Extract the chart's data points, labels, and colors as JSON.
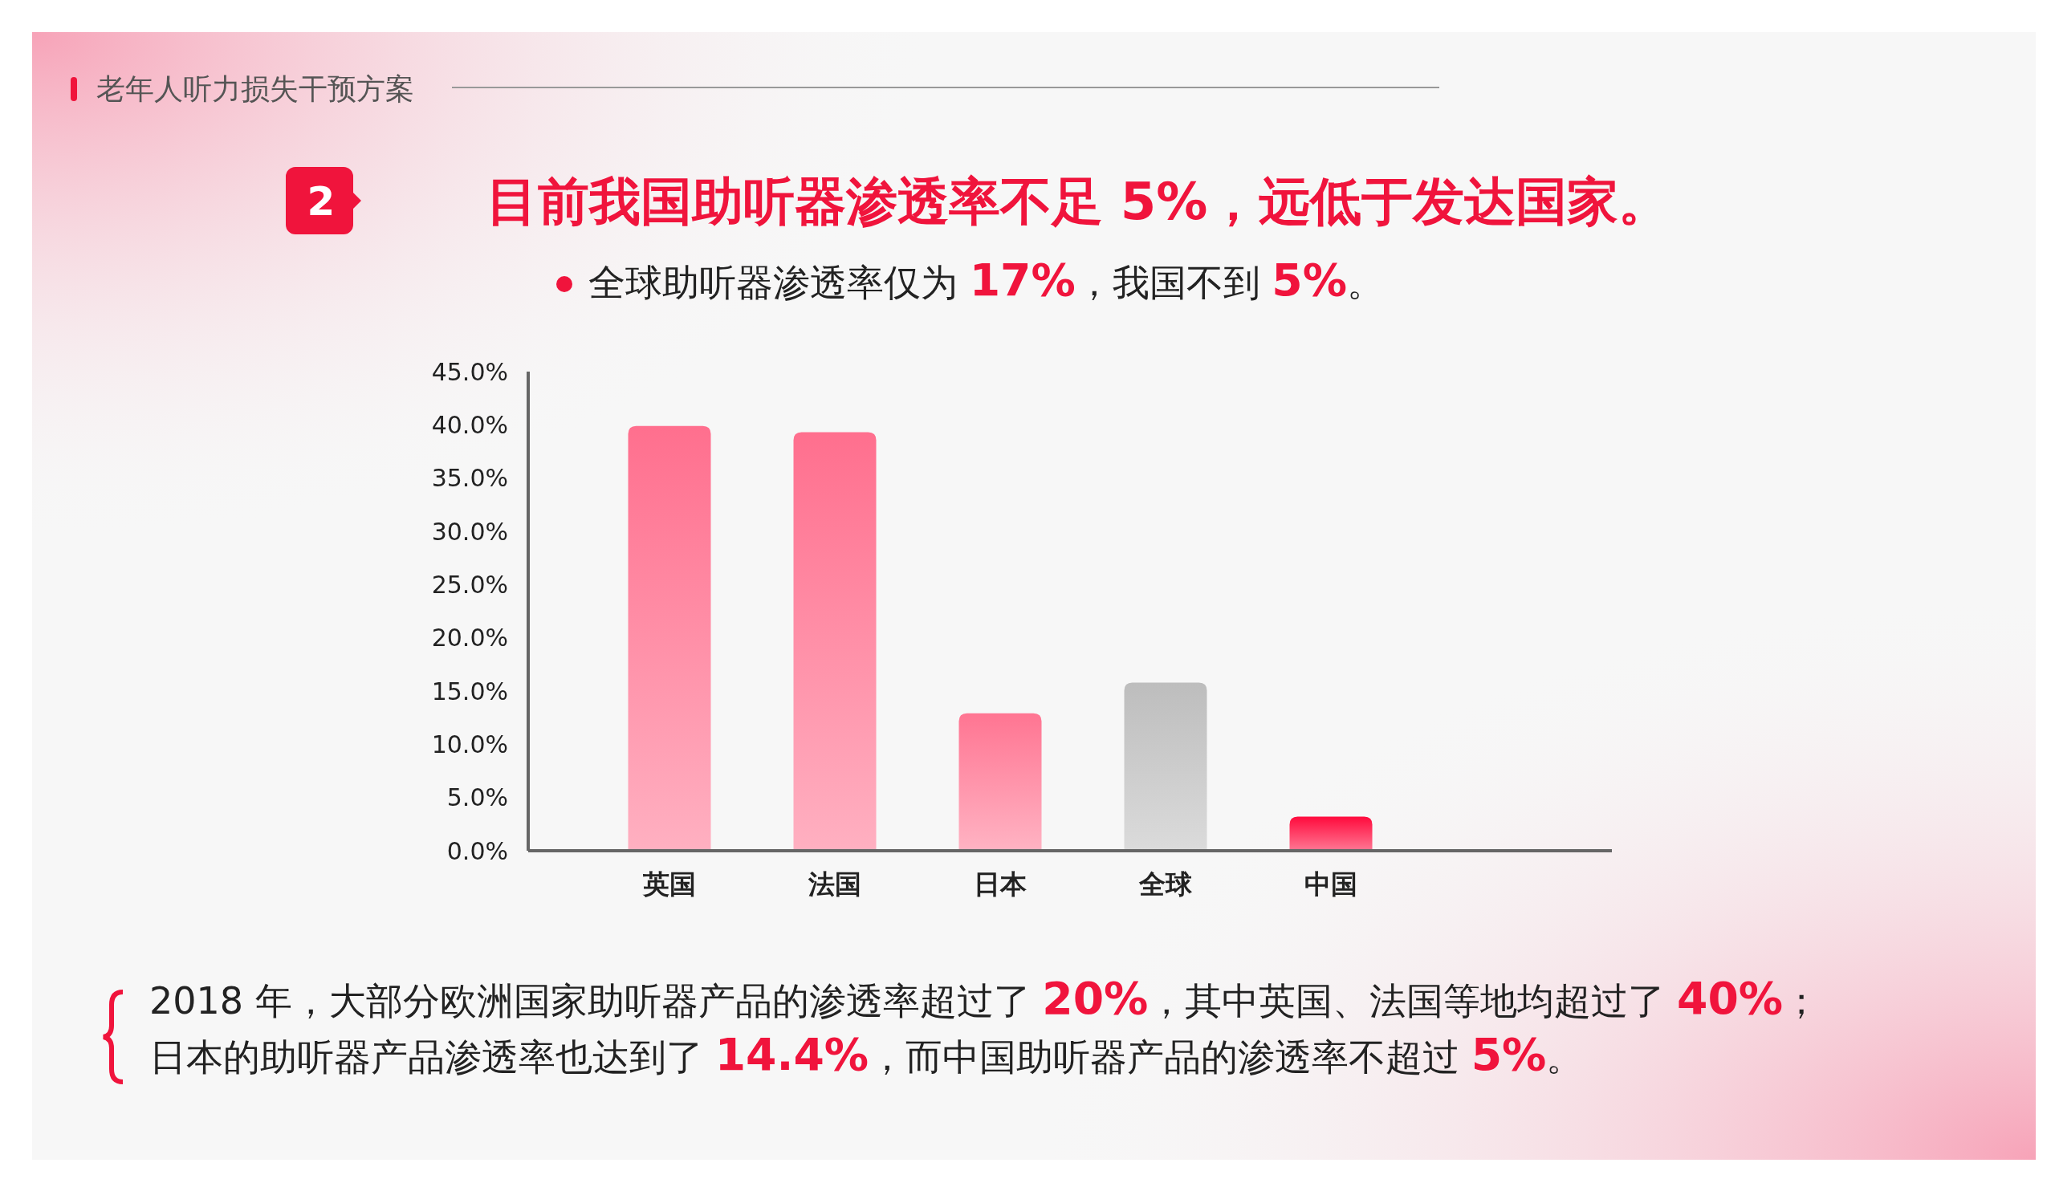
{
  "chart_data": {
    "type": "bar",
    "title": "目前我国助听器渗透率不足 5%，远低于发达国家。",
    "subtitle": "全球助听器渗透率仅为 17%，我国不到 5%。",
    "categories": [
      "英国",
      "法国",
      "日本",
      "全球",
      "中国"
    ],
    "values": [
      39.9,
      39.3,
      12.9,
      15.8,
      3.2
    ],
    "colors": [
      "#ff6f8e",
      "#ff6f8e",
      "#ff7592",
      "#bdbdbd",
      "#ff0a3c"
    ],
    "ylim": [
      0,
      45
    ],
    "yticks": [
      {
        "value": 0,
        "label": "0.0%"
      },
      {
        "value": 5,
        "label": "5.0%"
      },
      {
        "value": 10,
        "label": "10.0%"
      },
      {
        "value": 15,
        "label": "15.0%"
      },
      {
        "value": 20,
        "label": "20.0%"
      },
      {
        "value": 25,
        "label": "25.0%"
      },
      {
        "value": 30,
        "label": "30.0%"
      },
      {
        "value": 35,
        "label": "35.0%"
      },
      {
        "value": 40,
        "label": "40.0%"
      },
      {
        "value": 45,
        "label": "45.0%"
      }
    ],
    "grid": false,
    "annotations": [
      "老年人听力损失干预方案",
      "2",
      "2018 年，大部分欧洲国家助听器产品的渗透率超过了 20%，其中英国、法国等地均超过了 40%；",
      "日本的助听器产品渗透率也达到了 14.4%，而中国助听器产品的渗透率不超过 5%。"
    ]
  }
}
